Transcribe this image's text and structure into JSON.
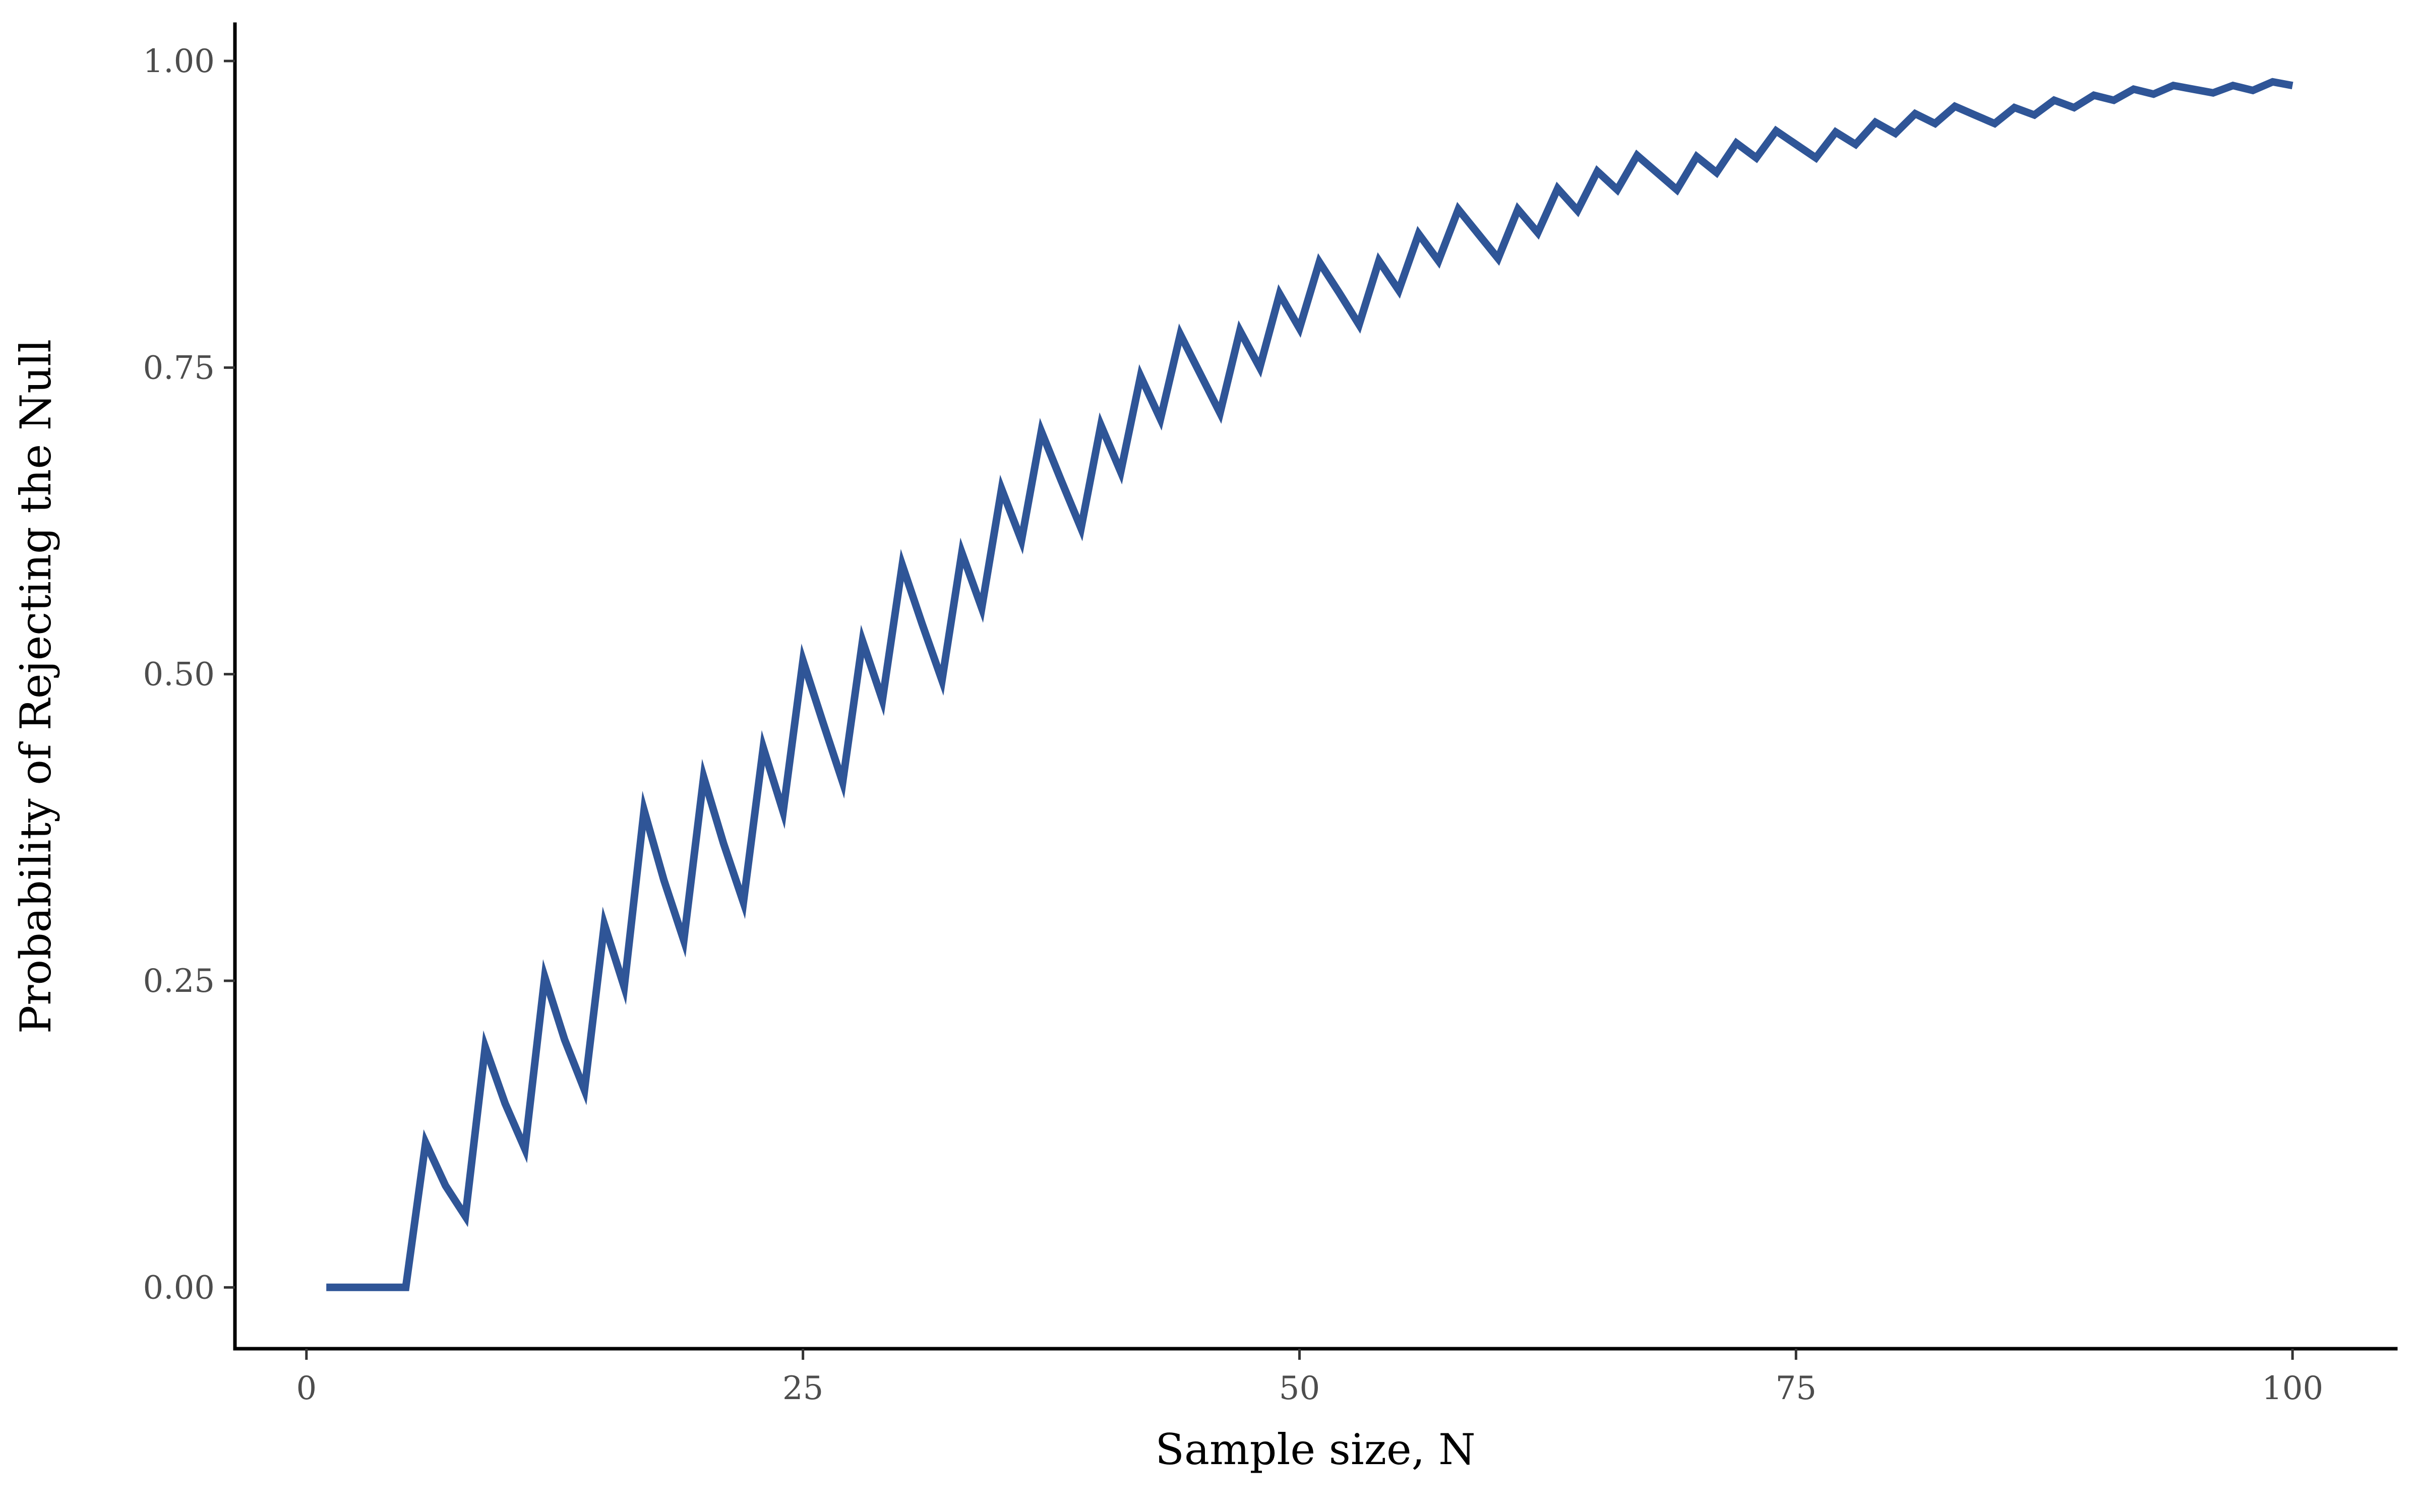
{
  "chart_data": {
    "type": "line",
    "xlabel": "Sample size, N",
    "ylabel": "Probability of Rejecting the Null",
    "xlim": [
      -3.6,
      105.2
    ],
    "ylim": [
      -0.05,
      1.03
    ],
    "x_ticks": [
      0,
      25,
      50,
      75,
      100
    ],
    "x_tick_labels": [
      "0",
      "25",
      "50",
      "75",
      "100"
    ],
    "y_ticks": [
      0,
      0.25,
      0.5,
      0.75,
      1
    ],
    "y_tick_labels": [
      "0.00",
      "0.25",
      "0.50",
      "0.75",
      "1.00"
    ],
    "grid": false,
    "line_color": "#2f5597",
    "series": [
      {
        "x": [
          1,
          2,
          3,
          4,
          5,
          6,
          7,
          8,
          9,
          10,
          11,
          12,
          13,
          14,
          15,
          16,
          17,
          18,
          19,
          20,
          21,
          22,
          23,
          24,
          25,
          26,
          27,
          28,
          29,
          30,
          31,
          32,
          33,
          34,
          35,
          36,
          37,
          38,
          39,
          40,
          41,
          42,
          43,
          44,
          45,
          46,
          47,
          48,
          49,
          50,
          51,
          52,
          53,
          54,
          55,
          56,
          57,
          58,
          59,
          60,
          61,
          62,
          63,
          64,
          65,
          66,
          67,
          68,
          69,
          70,
          71,
          72,
          73,
          74,
          75,
          76,
          77,
          78,
          79,
          80,
          81,
          82,
          83,
          84,
          85,
          86,
          87,
          88,
          89,
          90,
          91,
          92,
          93,
          94,
          95,
          96,
          97,
          98,
          99,
          100
        ],
        "values": [
          0.0,
          0.0,
          0.0,
          0.0,
          0.0,
          0.118,
          0.083,
          0.058,
          0.196,
          0.15,
          0.113,
          0.253,
          0.202,
          0.161,
          0.296,
          0.245,
          0.389,
          0.332,
          0.283,
          0.416,
          0.362,
          0.314,
          0.44,
          0.388,
          0.511,
          0.461,
          0.412,
          0.527,
          0.479,
          0.589,
          0.541,
          0.495,
          0.599,
          0.554,
          0.651,
          0.609,
          0.698,
          0.658,
          0.619,
          0.703,
          0.665,
          0.743,
          0.708,
          0.777,
          0.745,
          0.713,
          0.78,
          0.75,
          0.81,
          0.782,
          0.836,
          0.811,
          0.785,
          0.837,
          0.813,
          0.859,
          0.837,
          0.879,
          0.859,
          0.839,
          0.879,
          0.86,
          0.896,
          0.878,
          0.91,
          0.895,
          0.923,
          0.909,
          0.895,
          0.922,
          0.909,
          0.933,
          0.921,
          0.943,
          0.932,
          0.921,
          0.942,
          0.932,
          0.95,
          0.941,
          0.957,
          0.949,
          0.963,
          0.956,
          0.949,
          0.962,
          0.956,
          0.968,
          0.962,
          0.972,
          0.968,
          0.977,
          0.973,
          0.98,
          0.977,
          0.974,
          0.98,
          0.976,
          0.983,
          0.98
        ]
      }
    ]
  }
}
